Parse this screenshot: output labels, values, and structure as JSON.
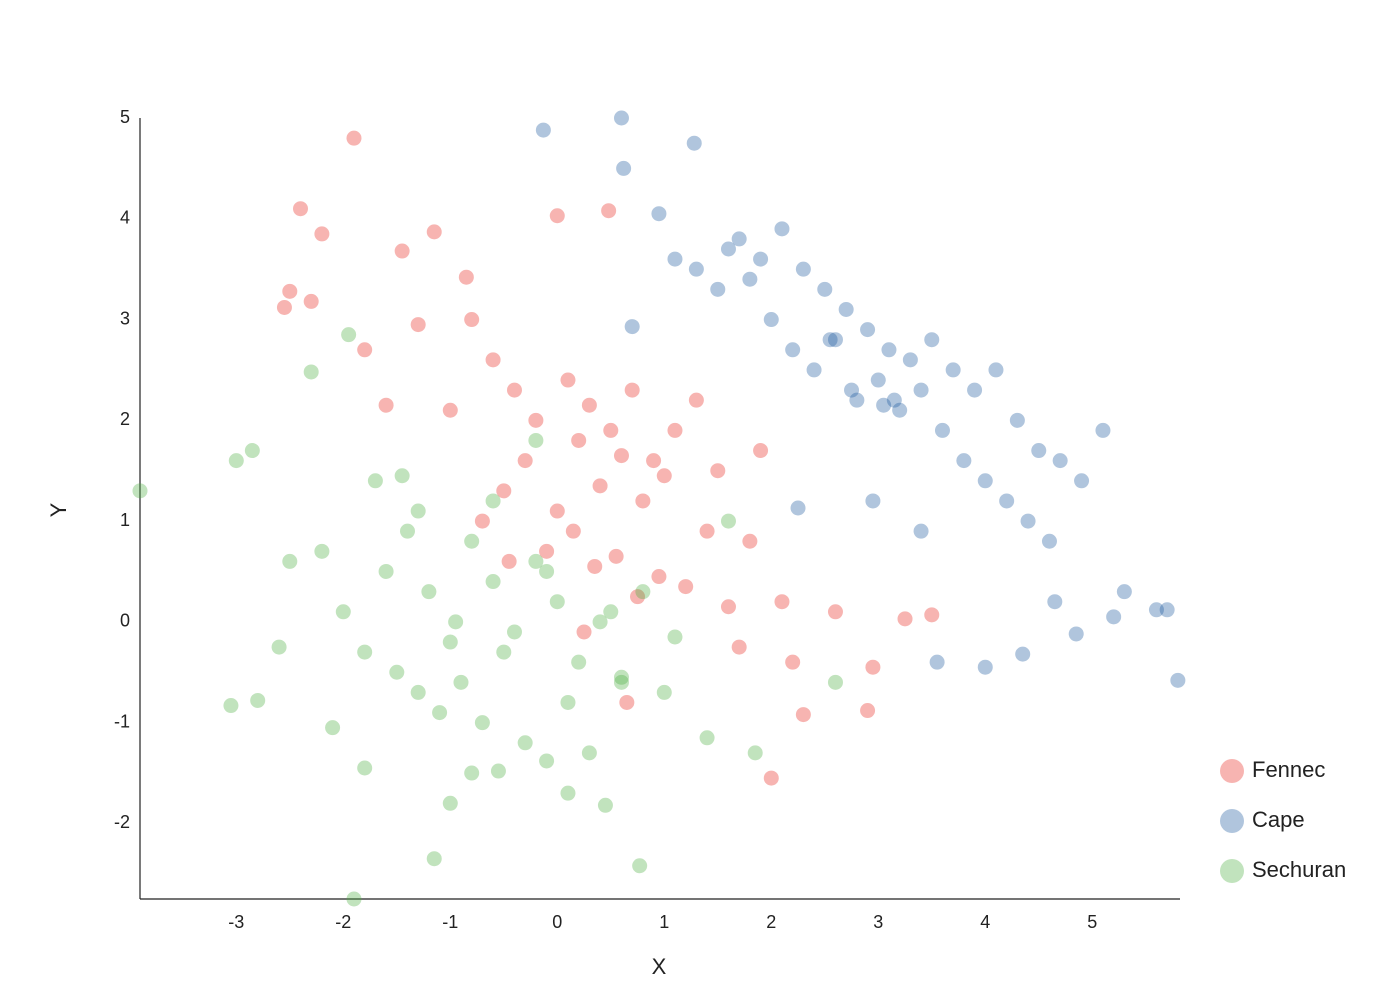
{
  "chart_data": {
    "type": "scatter",
    "x_label": "X",
    "y_label": "Y",
    "xlim": [
      -3.9,
      5.82
    ],
    "ylim": [
      -2.75,
      5
    ],
    "xticks": [
      -3,
      -2,
      -1,
      0,
      1,
      2,
      3,
      4,
      5
    ],
    "yticks": [
      -2,
      -1,
      0,
      1,
      2,
      3,
      4,
      5
    ],
    "grid": false,
    "legend": "lower right",
    "opacity": 0.35,
    "series": [
      {
        "name": "Fennec",
        "color": "#e8271f",
        "x": [
          -1.9,
          -2.4,
          -2.2,
          -2.55,
          -2.5,
          -2.3,
          -1.45,
          -1.15,
          0,
          0.48,
          2.0,
          2.9,
          2.3,
          3.25,
          3.5,
          2.95,
          -0.85,
          -0.8,
          -1.3,
          -1.0,
          -0.6,
          -0.4,
          -0.2,
          0.1,
          0.3,
          0.5,
          0.7,
          0.9,
          1.1,
          1.3,
          1.5,
          -0.5,
          -0.3,
          0.0,
          0.2,
          0.4,
          0.6,
          0.8,
          1.0,
          1.2,
          1.4,
          1.6,
          1.8,
          2.1,
          -0.1,
          0.15,
          0.35,
          0.55,
          0.75,
          0.95,
          -0.7,
          -0.45,
          1.7,
          2.2,
          2.6,
          0.25,
          -1.6,
          -1.8,
          0.65,
          1.9
        ],
        "y": [
          4.8,
          4.1,
          3.85,
          3.12,
          3.28,
          3.18,
          3.68,
          3.87,
          4.03,
          4.08,
          -1.55,
          -0.88,
          -0.92,
          0.03,
          0.07,
          -0.45,
          3.42,
          3.0,
          2.95,
          2.1,
          2.6,
          2.3,
          2.0,
          2.4,
          2.15,
          1.9,
          2.3,
          1.6,
          1.9,
          2.2,
          1.5,
          1.3,
          1.6,
          1.1,
          1.8,
          1.35,
          1.65,
          1.2,
          1.45,
          0.35,
          0.9,
          0.15,
          0.8,
          0.2,
          0.7,
          0.9,
          0.55,
          0.65,
          0.25,
          0.45,
          1.0,
          0.6,
          -0.25,
          -0.4,
          0.1,
          -0.1,
          2.15,
          2.7,
          -0.8,
          1.7
        ]
      },
      {
        "name": "Cape",
        "color": "#1c5a9e",
        "x": [
          -0.13,
          0.6,
          1.28,
          0.62,
          5.8,
          5.7,
          5.6,
          3.55,
          4.0,
          4.35,
          4.85,
          2.25,
          3.4,
          0.95,
          1.1,
          1.3,
          1.5,
          1.7,
          1.9,
          2.1,
          2.3,
          2.5,
          2.7,
          2.9,
          3.1,
          3.3,
          3.5,
          3.7,
          3.9,
          4.1,
          4.3,
          4.5,
          4.7,
          4.9,
          5.1,
          2.0,
          2.2,
          2.4,
          2.6,
          2.8,
          3.0,
          3.2,
          3.4,
          3.6,
          3.8,
          4.0,
          4.2,
          4.4,
          4.6,
          1.6,
          1.8,
          2.55,
          2.75,
          3.05,
          3.15,
          2.95,
          5.2,
          5.3,
          0.7,
          4.65
        ],
        "y": [
          4.88,
          5.0,
          4.75,
          4.5,
          -0.58,
          0.12,
          0.12,
          -0.4,
          -0.45,
          -0.32,
          -0.12,
          1.13,
          0.9,
          4.05,
          3.6,
          3.5,
          3.3,
          3.8,
          3.6,
          3.9,
          3.5,
          3.3,
          3.1,
          2.9,
          2.7,
          2.6,
          2.8,
          2.5,
          2.3,
          2.5,
          2.0,
          1.7,
          1.6,
          1.4,
          1.9,
          3.0,
          2.7,
          2.5,
          2.8,
          2.2,
          2.4,
          2.1,
          2.3,
          1.9,
          1.6,
          1.4,
          1.2,
          1.0,
          0.8,
          3.7,
          3.4,
          2.8,
          2.3,
          2.15,
          2.2,
          1.2,
          0.05,
          0.3,
          2.93,
          0.2
        ]
      },
      {
        "name": "Sechuran",
        "color": "#4caf42",
        "x": [
          -3.9,
          -3.05,
          -3.0,
          -2.85,
          -1.9,
          -1.15,
          0.77,
          -2.8,
          -1.95,
          -2.3,
          -2.5,
          -2.2,
          -2.0,
          -1.8,
          -1.6,
          -1.4,
          -1.2,
          -1.0,
          -0.8,
          -0.6,
          -0.4,
          -0.2,
          0.0,
          0.2,
          0.4,
          0.6,
          0.8,
          1.0,
          -1.7,
          -1.5,
          -1.3,
          -1.1,
          -0.9,
          -0.7,
          -0.5,
          -0.3,
          -0.1,
          0.1,
          0.3,
          0.5,
          -1.0,
          -0.8,
          -0.6,
          -0.2,
          0.1,
          1.4,
          1.85,
          -2.6,
          -1.8,
          -0.1,
          0.45,
          1.1,
          -0.55,
          -1.3,
          -0.95,
          0.6,
          -2.1,
          -1.45,
          1.6,
          2.6
        ],
        "y": [
          1.3,
          -0.83,
          1.6,
          1.7,
          -2.75,
          -2.35,
          -2.42,
          -0.78,
          2.85,
          2.48,
          0.6,
          0.7,
          0.1,
          -0.3,
          0.5,
          0.9,
          0.3,
          -0.2,
          0.8,
          0.4,
          -0.1,
          0.6,
          0.2,
          -0.4,
          0.0,
          -0.6,
          0.3,
          -0.7,
          1.4,
          -0.5,
          1.1,
          -0.9,
          -0.6,
          -1.0,
          -0.3,
          -1.2,
          0.5,
          -0.8,
          -1.3,
          0.1,
          -1.8,
          -1.5,
          1.2,
          1.8,
          -1.7,
          -1.15,
          -1.3,
          -0.25,
          -1.45,
          -1.38,
          -1.82,
          -0.15,
          -1.48,
          -0.7,
          0.0,
          -0.55,
          -1.05,
          1.45,
          1.0,
          -0.6
        ]
      }
    ]
  }
}
